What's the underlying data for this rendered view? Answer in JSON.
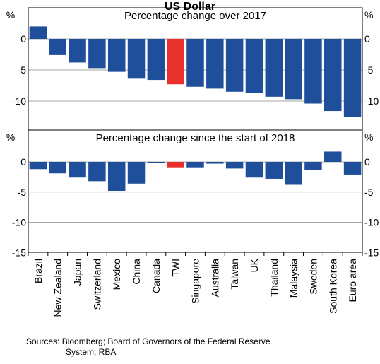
{
  "chart_data": {
    "type": "bar",
    "title": "US Dollar",
    "categories": [
      "Brazil",
      "New Zealand",
      "Japan",
      "Switzerland",
      "Mexico",
      "China",
      "Canada",
      "TWI",
      "Singapore",
      "Australia",
      "Taiwan",
      "UK",
      "Thailand",
      "Malaysia",
      "Sweden",
      "South Korea",
      "Euro area"
    ],
    "highlight_category": "TWI",
    "colors": {
      "bar": "#1f4e9b",
      "highlight": "#e8312f"
    },
    "grid": true,
    "panels": [
      {
        "title": "Percentage change over 2017",
        "ylabel": "%",
        "ylim": [
          -13,
          2.5
        ],
        "yticks": [
          0,
          -5,
          -10
        ],
        "values": [
          2.0,
          -2.6,
          -3.8,
          -4.7,
          -5.3,
          -6.4,
          -6.6,
          -7.3,
          -7.7,
          -8.0,
          -8.5,
          -8.7,
          -9.3,
          -9.7,
          -10.4,
          -11.6,
          -12.5
        ]
      },
      {
        "title": "Percentage change since the start of 2018",
        "ylabel": "%",
        "ylim": [
          -15,
          2.5
        ],
        "yticks": [
          0,
          -5,
          -10,
          -15
        ],
        "values": [
          -1.2,
          -1.9,
          -2.6,
          -3.2,
          -4.8,
          -3.6,
          -0.2,
          -0.9,
          -0.9,
          -0.3,
          -1.1,
          -2.6,
          -2.8,
          -3.8,
          -1.3,
          1.7,
          -2.1
        ]
      }
    ]
  },
  "source": {
    "line1": "Sources: Bloomberg; Board of Governors of the Federal Reserve",
    "line2": "System; RBA"
  }
}
